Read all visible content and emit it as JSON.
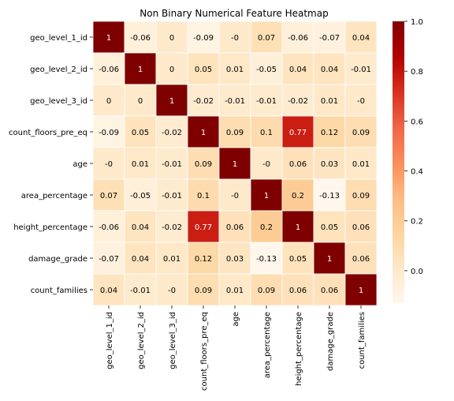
{
  "chart_data": {
    "type": "heatmap",
    "title": "Non Binary Numerical Feature Heatmap",
    "xlabel": "",
    "ylabel": "",
    "row_labels": [
      "geo_level_1_id",
      "geo_level_2_id",
      "geo_level_3_id",
      "count_floors_pre_eq",
      "age",
      "area_percentage",
      "height_percentage",
      "damage_grade",
      "count_families"
    ],
    "col_labels": [
      "geo_level_1_id",
      "geo_level_2_id",
      "geo_level_3_id",
      "count_floors_pre_eq",
      "age",
      "area_percentage",
      "height_percentage",
      "damage_grade",
      "count_families"
    ],
    "values": [
      [
        1,
        -0.06,
        0,
        -0.09,
        0,
        0.07,
        -0.06,
        -0.07,
        0.04
      ],
      [
        -0.06,
        1,
        0,
        0.05,
        0.01,
        -0.05,
        0.04,
        0.04,
        -0.01
      ],
      [
        0,
        0,
        1,
        -0.02,
        -0.01,
        -0.01,
        -0.02,
        0.01,
        0
      ],
      [
        -0.09,
        0.05,
        -0.02,
        1,
        0.09,
        0.1,
        0.77,
        0.12,
        0.09
      ],
      [
        0,
        0.01,
        -0.01,
        0.09,
        1,
        0,
        0.06,
        0.03,
        0.01
      ],
      [
        0.07,
        -0.05,
        -0.01,
        0.1,
        0,
        1,
        0.2,
        -0.13,
        0.09
      ],
      [
        -0.06,
        0.04,
        -0.02,
        0.77,
        0.06,
        0.2,
        1,
        0.05,
        0.06
      ],
      [
        -0.07,
        0.04,
        0.01,
        0.12,
        0.03,
        -0.13,
        0.05,
        1,
        0.06
      ],
      [
        0.04,
        -0.01,
        0,
        0.09,
        0.01,
        0.09,
        0.06,
        0.06,
        1
      ]
    ],
    "colormap": "OrRd",
    "vmin": -0.13,
    "vmax": 1.0,
    "colorbar_ticks": [
      "0.0",
      "0.2",
      "0.4",
      "0.6",
      "0.8",
      "1.0"
    ],
    "colorbar_tick_values": [
      0.0,
      0.2,
      0.4,
      0.6,
      0.8,
      1.0
    ],
    "annot_text_dark": "#000000",
    "annot_text_light": "#ffffff",
    "cell_line_color": "#ffffff"
  }
}
